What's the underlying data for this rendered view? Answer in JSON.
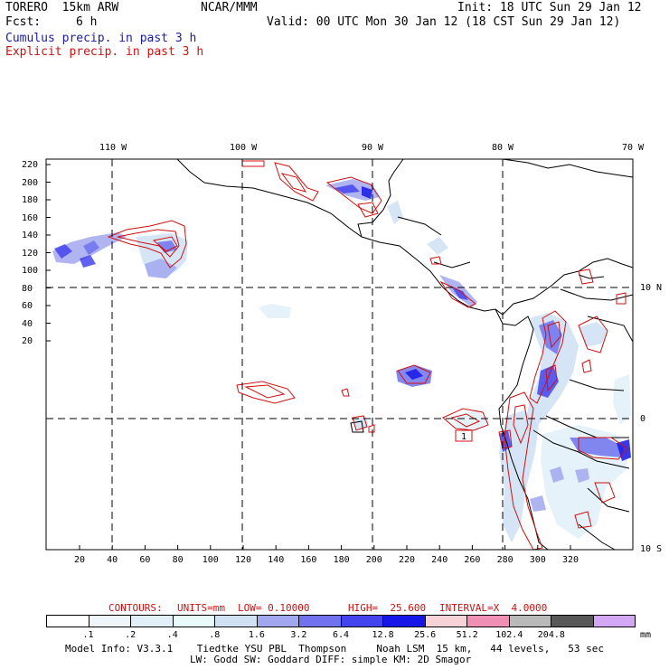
{
  "header": {
    "model": "TORERO  15km ARW",
    "org": "NCAR/MMM",
    "init": "Init: 18 UTC Sun 29 Jan 12",
    "fcst_label": "Fcst:",
    "fcst_value": "6 h",
    "valid": "Valid: 00 UTC Mon 30 Jan 12 (18 CST Sun 29 Jan 12)",
    "cumulus": "Cumulus precip. in past 3 h",
    "explicit": "Explicit precip. in past 3 h"
  },
  "map": {
    "lon_labels": [
      "110 W",
      "100 W",
      "90 W",
      "80 W",
      "70 W"
    ],
    "lat_labels": [
      "10 N",
      "0",
      "10 S"
    ],
    "y_ticks": [
      "220",
      "200",
      "180",
      "160",
      "140",
      "120",
      "100",
      "80",
      "60",
      "40",
      "20"
    ],
    "x_ticks": [
      "20",
      "40",
      "60",
      "80",
      "100",
      "120",
      "140",
      "160",
      "180",
      "200",
      "220",
      "240",
      "260",
      "280",
      "300",
      "320"
    ],
    "contour_box_label": "1"
  },
  "contours": {
    "label": "CONTOURS:",
    "units": "UNITS=mm",
    "low": "LOW= 0.10000",
    "high": "HIGH=  25.600",
    "interval": "INTERVAL=X  4.0000"
  },
  "legend": {
    "units": "mm",
    "values": [
      ".1",
      ".2",
      ".4",
      ".8",
      "1.6",
      "3.2",
      "6.4",
      "12.8",
      "25.6",
      "51.2",
      "102.4",
      "204.8"
    ],
    "colors": [
      "#ffffff",
      "#eef6fb",
      "#e1f0f8",
      "#e8fbfb",
      "#cfe1f3",
      "#a2a8f0",
      "#7072ee",
      "#4444ee",
      "#1616e6",
      "#f7d3d8",
      "#ef8fb4",
      "#b9b9b9",
      "#585858",
      "#d3a7f5"
    ]
  },
  "footer": {
    "line1": "Model Info: V3.3.1    Tiedtke YSU PBL  Thompson     Noah LSM  15 km,   44 levels,   53 sec",
    "line2": "LW: Godd SW: Goddard DIFF: simple KM: 2D Smagor"
  }
}
